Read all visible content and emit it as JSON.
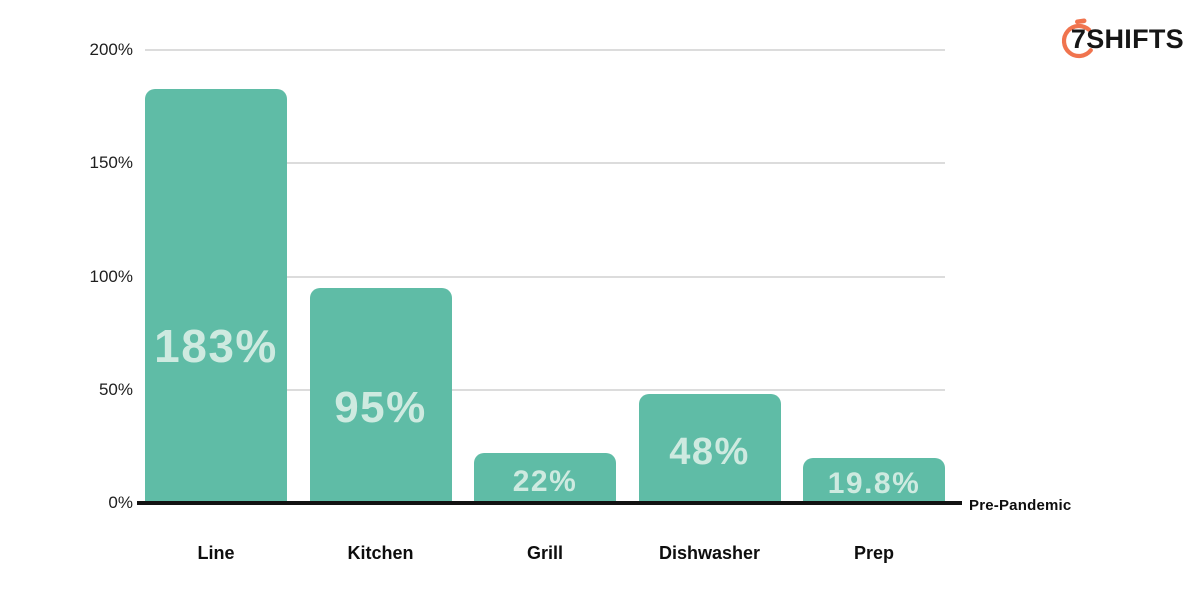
{
  "logo": {
    "text": "7SHIFTS",
    "icon": "stopwatch-icon",
    "icon_color": "#F0744E",
    "text_color": "#161616"
  },
  "chart_data": {
    "type": "bar",
    "categories": [
      "Line",
      "Kitchen",
      "Grill",
      "Dishwasher",
      "Prep"
    ],
    "values": [
      183,
      95,
      22,
      48,
      19.8
    ],
    "value_labels": [
      "183%",
      "95%",
      "22%",
      "48%",
      "19.8%"
    ],
    "y_ticks": [
      "200%",
      "150%",
      "100%",
      "50%",
      "0%"
    ],
    "y_tick_values": [
      200,
      150,
      100,
      50,
      0
    ],
    "ylim": [
      0,
      200
    ],
    "baseline_label": "Pre-Pandemic",
    "title": "",
    "xlabel": "",
    "ylabel": "",
    "grid": true,
    "legend": false,
    "bar_color": "#5FBCA6",
    "bar_label_color": "#CEEAE0",
    "gridline_color": "#DCDCDC",
    "baseline_color": "#121212",
    "label_font_sizes": [
      46,
      44,
      30,
      38,
      30
    ],
    "label_pos_pct": [
      38,
      44,
      42,
      47,
      42
    ]
  }
}
